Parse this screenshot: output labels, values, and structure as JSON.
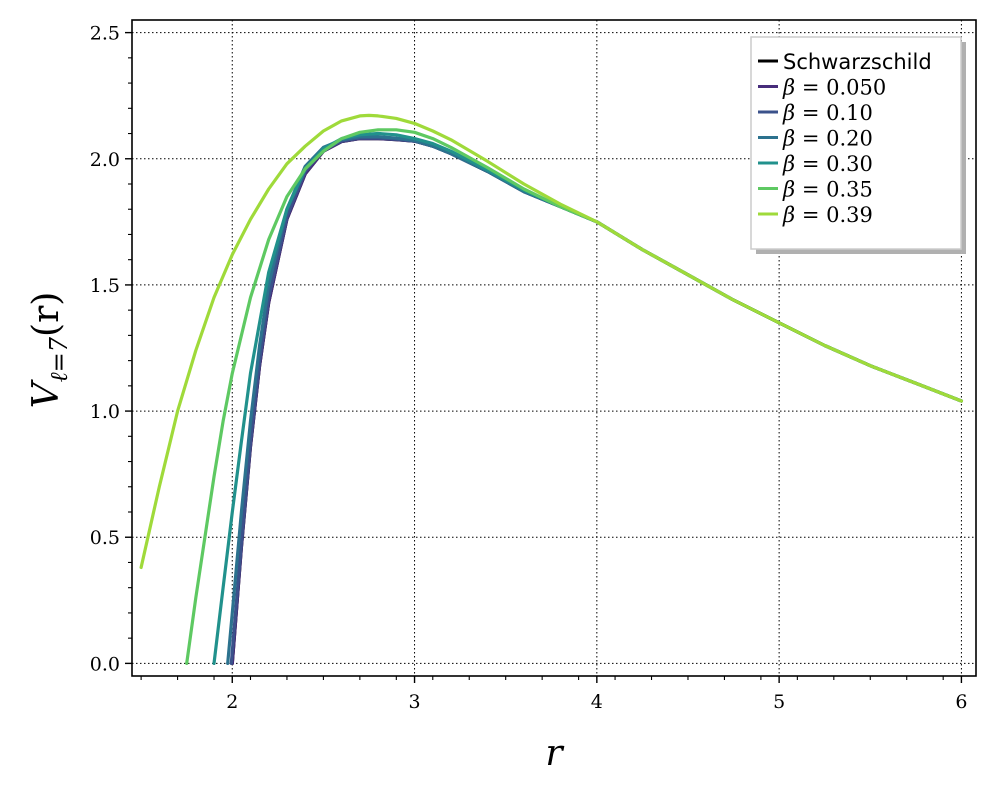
{
  "chart_data": {
    "type": "line",
    "xlabel": "r",
    "ylabel": "V",
    "ylabel_subscript": "ℓ=7",
    "ylabel_suffix": "(r)",
    "xlim": [
      1.45,
      6.08
    ],
    "ylim": [
      -0.05,
      2.55
    ],
    "xticks": [
      2,
      3,
      4,
      5,
      6
    ],
    "xtick_labels": [
      "2",
      "3",
      "4",
      "5",
      "6"
    ],
    "yticks": [
      0.0,
      0.5,
      1.0,
      1.5,
      2.0,
      2.5
    ],
    "ytick_labels": [
      "0.0",
      "0.5",
      "1.0",
      "1.5",
      "2.0",
      "2.5"
    ],
    "grid": true,
    "legend_position": "top-right",
    "series": [
      {
        "name": "Schwarzschild",
        "color": "#000000",
        "x": [
          2.0,
          2.05,
          2.1,
          2.15,
          2.2,
          2.3,
          2.4,
          2.5,
          2.6,
          2.7,
          2.8,
          2.9,
          3.0,
          3.1,
          3.2,
          3.4,
          3.6,
          3.8,
          4.0,
          4.25,
          4.5,
          4.75,
          5.0,
          5.25,
          5.5,
          5.75,
          6.0
        ],
        "y": [
          0.0,
          0.46,
          0.86,
          1.18,
          1.43,
          1.76,
          1.94,
          2.03,
          2.068,
          2.08,
          2.08,
          2.076,
          2.07,
          2.05,
          2.02,
          1.95,
          1.87,
          1.81,
          1.75,
          1.64,
          1.54,
          1.44,
          1.35,
          1.26,
          1.18,
          1.11,
          1.04
        ]
      },
      {
        "name": "β = 0.050",
        "label_prefix": "β",
        "label_value": "= 0.050",
        "color": "#472d7b",
        "x": [
          2.0,
          2.05,
          2.1,
          2.15,
          2.2,
          2.3,
          2.4,
          2.5,
          2.6,
          2.7,
          2.8,
          2.9,
          3.0,
          3.1,
          3.2,
          3.4,
          3.6,
          3.8,
          4.0,
          4.25,
          4.5,
          4.75,
          5.0,
          5.25,
          5.5,
          5.75,
          6.0
        ],
        "y": [
          0.0,
          0.46,
          0.86,
          1.18,
          1.43,
          1.76,
          1.94,
          2.03,
          2.068,
          2.08,
          2.08,
          2.076,
          2.07,
          2.05,
          2.02,
          1.95,
          1.87,
          1.81,
          1.75,
          1.64,
          1.54,
          1.44,
          1.35,
          1.26,
          1.18,
          1.11,
          1.04
        ]
      },
      {
        "name": "β = 0.10",
        "label_prefix": "β",
        "label_value": "= 0.10",
        "color": "#3b528b",
        "x": [
          1.995,
          2.05,
          2.1,
          2.15,
          2.2,
          2.3,
          2.4,
          2.5,
          2.6,
          2.7,
          2.8,
          2.9,
          3.0,
          3.1,
          3.2,
          3.4,
          3.6,
          3.8,
          4.0,
          4.25,
          4.5,
          4.75,
          5.0,
          5.25,
          5.5,
          5.75,
          6.0
        ],
        "y": [
          0.0,
          0.48,
          0.88,
          1.2,
          1.45,
          1.77,
          1.95,
          2.035,
          2.07,
          2.082,
          2.082,
          2.077,
          2.07,
          2.05,
          2.02,
          1.95,
          1.87,
          1.81,
          1.75,
          1.64,
          1.54,
          1.44,
          1.35,
          1.26,
          1.18,
          1.11,
          1.04
        ]
      },
      {
        "name": "β = 0.20",
        "label_prefix": "β",
        "label_value": "= 0.20",
        "color": "#2c728e",
        "x": [
          1.975,
          2.0,
          2.05,
          2.1,
          2.15,
          2.2,
          2.3,
          2.4,
          2.5,
          2.6,
          2.7,
          2.8,
          2.9,
          3.0,
          3.1,
          3.2,
          3.4,
          3.6,
          3.8,
          4.0,
          4.25,
          4.5,
          4.75,
          5.0,
          5.25,
          5.5,
          5.75,
          6.0
        ],
        "y": [
          0.0,
          0.2,
          0.6,
          0.96,
          1.26,
          1.5,
          1.8,
          1.97,
          2.045,
          2.075,
          2.087,
          2.088,
          2.082,
          2.072,
          2.05,
          2.02,
          1.95,
          1.87,
          1.81,
          1.75,
          1.64,
          1.54,
          1.44,
          1.35,
          1.26,
          1.18,
          1.11,
          1.04
        ]
      },
      {
        "name": "β = 0.30",
        "label_prefix": "β",
        "label_value": "= 0.30",
        "color": "#21918c",
        "x": [
          1.9,
          1.95,
          2.0,
          2.05,
          2.1,
          2.2,
          2.3,
          2.4,
          2.5,
          2.6,
          2.7,
          2.8,
          2.9,
          3.0,
          3.1,
          3.2,
          3.4,
          3.6,
          3.8,
          4.0,
          4.25,
          4.5,
          4.75,
          5.0,
          5.25,
          5.5,
          5.75,
          6.0
        ],
        "y": [
          0.0,
          0.3,
          0.6,
          0.88,
          1.15,
          1.55,
          1.8,
          1.96,
          2.04,
          2.08,
          2.095,
          2.1,
          2.095,
          2.08,
          2.06,
          2.03,
          1.955,
          1.875,
          1.81,
          1.75,
          1.64,
          1.54,
          1.44,
          1.35,
          1.26,
          1.18,
          1.11,
          1.04
        ]
      },
      {
        "name": "β = 0.35",
        "label_prefix": "β",
        "label_value": "= 0.35",
        "color": "#5ec962",
        "x": [
          1.75,
          1.8,
          1.85,
          1.9,
          1.95,
          2.0,
          2.1,
          2.2,
          2.3,
          2.4,
          2.5,
          2.6,
          2.7,
          2.8,
          2.9,
          3.0,
          3.1,
          3.2,
          3.4,
          3.6,
          3.8,
          4.0,
          4.25,
          4.5,
          4.75,
          5.0,
          5.25,
          5.5,
          5.75,
          6.0
        ],
        "y": [
          0.0,
          0.26,
          0.5,
          0.74,
          0.96,
          1.15,
          1.45,
          1.68,
          1.85,
          1.96,
          2.03,
          2.08,
          2.105,
          2.115,
          2.115,
          2.105,
          2.08,
          2.045,
          1.965,
          1.88,
          1.81,
          1.75,
          1.64,
          1.54,
          1.44,
          1.35,
          1.26,
          1.18,
          1.11,
          1.04
        ]
      },
      {
        "name": "β = 0.39",
        "label_prefix": "β",
        "label_value": "= 0.39",
        "color": "#9fda3a",
        "x": [
          1.5,
          1.55,
          1.6,
          1.65,
          1.7,
          1.8,
          1.9,
          2.0,
          2.1,
          2.2,
          2.3,
          2.4,
          2.5,
          2.6,
          2.7,
          2.75,
          2.8,
          2.9,
          3.0,
          3.1,
          3.2,
          3.4,
          3.6,
          3.8,
          4.0,
          4.25,
          4.5,
          4.75,
          5.0,
          5.25,
          5.5,
          5.75,
          6.0
        ],
        "y": [
          0.38,
          0.54,
          0.7,
          0.85,
          1.0,
          1.24,
          1.45,
          1.62,
          1.76,
          1.88,
          1.98,
          2.05,
          2.11,
          2.15,
          2.17,
          2.172,
          2.17,
          2.16,
          2.14,
          2.11,
          2.075,
          1.99,
          1.9,
          1.82,
          1.75,
          1.64,
          1.54,
          1.44,
          1.35,
          1.26,
          1.18,
          1.11,
          1.04
        ]
      }
    ]
  }
}
